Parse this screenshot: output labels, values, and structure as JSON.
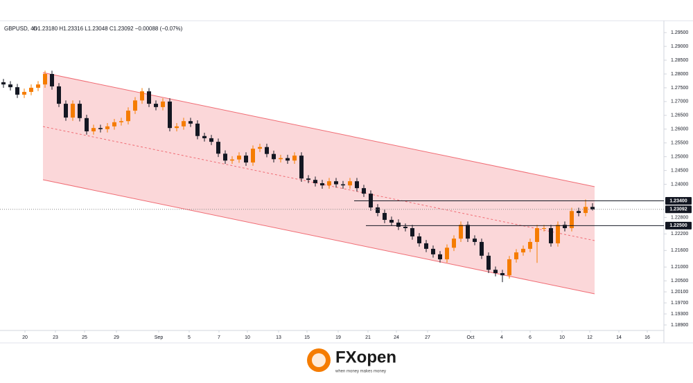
{
  "chart_data": {
    "type": "candlestick",
    "title": "GBPUSD, 4h",
    "ohlc_text": "O1.23180 H1.23316 L1.23048 C1.23092 −0.00088 (−0.07%)",
    "x": [
      0,
      1,
      2,
      3,
      4,
      5,
      6,
      7,
      8,
      9,
      10,
      11,
      12,
      13,
      14,
      15,
      16,
      17,
      18,
      19,
      20,
      21,
      22,
      23,
      24,
      25,
      26,
      27,
      28,
      29,
      30,
      31,
      32,
      33,
      34,
      35,
      36,
      37,
      38,
      39,
      40,
      41,
      42,
      43,
      44,
      45,
      46,
      47,
      48,
      49,
      50,
      51,
      52,
      53,
      54,
      55,
      56,
      57,
      58,
      59,
      60,
      61,
      62,
      63,
      64,
      65,
      66,
      67,
      68,
      69,
      70,
      71,
      72,
      73,
      74,
      75,
      76,
      77,
      78,
      79,
      80,
      81,
      82,
      83,
      84,
      85
    ],
    "open": [
      1.277,
      1.2762,
      1.2752,
      1.2725,
      1.2735,
      1.275,
      1.2762,
      1.28,
      1.2755,
      1.2692,
      1.2642,
      1.2692,
      1.264,
      1.2592,
      1.2604,
      1.26,
      1.261,
      1.2625,
      1.2629,
      1.2667,
      1.2704,
      1.2737,
      1.2692,
      1.268,
      1.27,
      1.2604,
      1.261,
      1.2629,
      1.262,
      1.2575,
      1.2567,
      1.2554,
      1.2511,
      1.2486,
      1.249,
      1.2504,
      1.2479,
      1.2529,
      1.2535,
      1.251,
      1.2491,
      1.2495,
      1.2486,
      1.2504,
      1.2421,
      1.2416,
      1.2404,
      1.2396,
      1.2411,
      1.24,
      1.2396,
      1.2411,
      1.2386,
      1.2366,
      1.2316,
      1.2296,
      1.2271,
      1.2261,
      1.2246,
      1.2241,
      1.2211,
      1.2186,
      1.2166,
      1.2146,
      1.2128,
      1.217,
      1.2203,
      1.2253,
      1.2203,
      1.2191,
      1.2141,
      1.209,
      1.2078,
      1.207,
      1.2128,
      1.2153,
      1.2166,
      1.2191,
      1.2241,
      1.2241,
      1.2186,
      1.2253,
      1.2241,
      1.2303,
      1.2296,
      1.2318
    ],
    "high": [
      1.2782,
      1.2774,
      1.2764,
      1.2747,
      1.2762,
      1.2774,
      1.2812,
      1.2812,
      1.2767,
      1.2704,
      1.2704,
      1.2704,
      1.2652,
      1.2616,
      1.2616,
      1.2622,
      1.2637,
      1.2641,
      1.2679,
      1.2716,
      1.2749,
      1.2749,
      1.2704,
      1.2712,
      1.2712,
      1.2622,
      1.2641,
      1.2641,
      1.2632,
      1.2587,
      1.2579,
      1.2566,
      1.2523,
      1.2502,
      1.2516,
      1.2516,
      1.2541,
      1.2547,
      1.2547,
      1.2522,
      1.2507,
      1.2507,
      1.2516,
      1.2516,
      1.2433,
      1.2428,
      1.2416,
      1.2423,
      1.2423,
      1.2412,
      1.2423,
      1.2423,
      1.2398,
      1.2378,
      1.2328,
      1.2308,
      1.2283,
      1.2273,
      1.2258,
      1.2253,
      1.2223,
      1.2198,
      1.2178,
      1.2158,
      1.2182,
      1.2215,
      1.2265,
      1.2265,
      1.2215,
      1.2203,
      1.2153,
      1.2102,
      1.209,
      1.214,
      1.2165,
      1.2178,
      1.2203,
      1.2253,
      1.2253,
      1.2253,
      1.2265,
      1.2265,
      1.2315,
      1.2315,
      1.2345,
      1.23316
    ],
    "low": [
      1.275,
      1.274,
      1.2713,
      1.2713,
      1.2723,
      1.2738,
      1.275,
      1.2743,
      1.268,
      1.263,
      1.263,
      1.2628,
      1.258,
      1.258,
      1.2588,
      1.2588,
      1.2598,
      1.2613,
      1.2617,
      1.2655,
      1.2692,
      1.268,
      1.2668,
      1.2668,
      1.2592,
      1.2592,
      1.2598,
      1.2608,
      1.2563,
      1.2555,
      1.2542,
      1.2499,
      1.2474,
      1.2474,
      1.2478,
      1.2467,
      1.2467,
      1.2517,
      1.2498,
      1.2479,
      1.2479,
      1.2474,
      1.2474,
      1.2409,
      1.2404,
      1.2392,
      1.2384,
      1.2384,
      1.2388,
      1.2384,
      1.2384,
      1.2374,
      1.2354,
      1.2304,
      1.2284,
      1.2259,
      1.2249,
      1.2234,
      1.2229,
      1.2199,
      1.2174,
      1.2154,
      1.2134,
      1.2116,
      1.2116,
      1.2158,
      1.2191,
      1.2191,
      1.2179,
      1.2129,
      1.2078,
      1.2066,
      1.2045,
      1.2058,
      1.2116,
      1.2141,
      1.2154,
      1.2115,
      1.2229,
      1.2174,
      1.2174,
      1.2229,
      1.2229,
      1.2284,
      1.2284,
      1.23048
    ],
    "close": [
      1.2762,
      1.2752,
      1.2725,
      1.2735,
      1.275,
      1.2762,
      1.28,
      1.2755,
      1.2692,
      1.2642,
      1.2692,
      1.264,
      1.2592,
      1.2604,
      1.26,
      1.261,
      1.2625,
      1.2629,
      1.2667,
      1.2704,
      1.2737,
      1.2692,
      1.268,
      1.27,
      1.2604,
      1.261,
      1.2629,
      1.262,
      1.2575,
      1.2567,
      1.2554,
      1.2511,
      1.2486,
      1.249,
      1.2504,
      1.2479,
      1.2529,
      1.2535,
      1.251,
      1.2491,
      1.2495,
      1.2486,
      1.2504,
      1.2421,
      1.2416,
      1.2404,
      1.2396,
      1.2411,
      1.24,
      1.2396,
      1.2411,
      1.2386,
      1.2366,
      1.2316,
      1.2296,
      1.2271,
      1.2261,
      1.2246,
      1.2241,
      1.2211,
      1.2186,
      1.2166,
      1.2146,
      1.2128,
      1.217,
      1.2203,
      1.2253,
      1.2203,
      1.2191,
      1.2141,
      1.209,
      1.2078,
      1.207,
      1.2128,
      1.2153,
      1.2166,
      1.2191,
      1.2241,
      1.2241,
      1.2186,
      1.2253,
      1.2241,
      1.2303,
      1.2296,
      1.2318,
      1.23092
    ],
    "up_color": "#f57c00",
    "down_color": "#131722",
    "xlim": [
      -0.5,
      95.3
    ],
    "ylim": [
      1.187,
      1.2993
    ],
    "yticks": [
      {
        "value": 1.295,
        "label": "1.29500"
      },
      {
        "value": 1.29,
        "label": "1.29000"
      },
      {
        "value": 1.285,
        "label": "1.28500"
      },
      {
        "value": 1.28,
        "label": "1.28000"
      },
      {
        "value": 1.275,
        "label": "1.27500"
      },
      {
        "value": 1.27,
        "label": "1.27000"
      },
      {
        "value": 1.265,
        "label": "1.26500"
      },
      {
        "value": 1.26,
        "label": "1.26000"
      },
      {
        "value": 1.255,
        "label": "1.25500"
      },
      {
        "value": 1.25,
        "label": "1.25000"
      },
      {
        "value": 1.245,
        "label": "1.24500"
      },
      {
        "value": 1.24,
        "label": "1.24000"
      },
      {
        "value": 1.228,
        "label": "1.22800"
      },
      {
        "value": 1.222,
        "label": "1.22200"
      },
      {
        "value": 1.216,
        "label": "1.21600"
      },
      {
        "value": 1.21,
        "label": "1.21000"
      },
      {
        "value": 1.205,
        "label": "1.20500"
      },
      {
        "value": 1.201,
        "label": "1.20100"
      },
      {
        "value": 1.197,
        "label": "1.19700"
      },
      {
        "value": 1.193,
        "label": "1.19300"
      },
      {
        "value": 1.189,
        "label": "1.18900"
      }
    ],
    "xticks": [
      {
        "value": 3.1,
        "label": "20"
      },
      {
        "value": 7.5,
        "label": "23"
      },
      {
        "value": 11.7,
        "label": "25"
      },
      {
        "value": 16.3,
        "label": "29"
      },
      {
        "value": 22.4,
        "label": "Sep"
      },
      {
        "value": 26.8,
        "label": "5"
      },
      {
        "value": 31.1,
        "label": "7"
      },
      {
        "value": 35.2,
        "label": "10"
      },
      {
        "value": 39.7,
        "label": "13"
      },
      {
        "value": 43.8,
        "label": "15"
      },
      {
        "value": 48.3,
        "label": "19"
      },
      {
        "value": 52.6,
        "label": "21"
      },
      {
        "value": 56.7,
        "label": "24"
      },
      {
        "value": 61.2,
        "label": "27"
      },
      {
        "value": 67.4,
        "label": "Oct"
      },
      {
        "value": 71.9,
        "label": "4"
      },
      {
        "value": 76,
        "label": "6"
      },
      {
        "value": 80.6,
        "label": "10"
      },
      {
        "value": 84.6,
        "label": "12"
      },
      {
        "value": 88.8,
        "label": "14"
      },
      {
        "value": 92.9,
        "label": "16"
      }
    ],
    "levels": [
      {
        "value": 1.234,
        "label": "1.23400"
      },
      {
        "value": 1.23092,
        "label": "1.23092"
      },
      {
        "value": 1.225,
        "label": "1.22500"
      }
    ],
    "grid": false
  },
  "branding": {
    "logo": "FXopen",
    "tagline": "when money makes money"
  }
}
